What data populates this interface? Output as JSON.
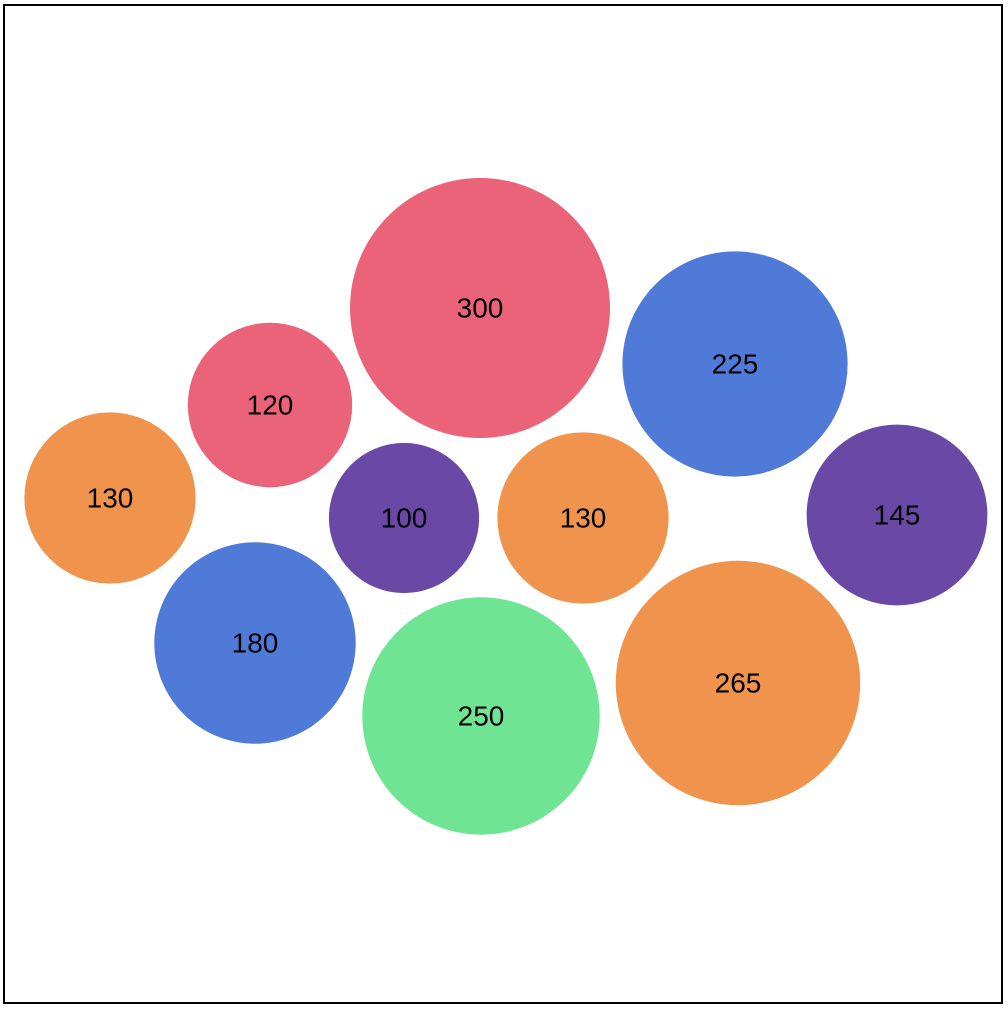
{
  "chart_data": {
    "type": "bubble",
    "title": "",
    "values": [
      130,
      120,
      300,
      225,
      100,
      130,
      145,
      180,
      250,
      265
    ],
    "colors": [
      "#f0944d",
      "#eb6379",
      "#eb6379",
      "#507ad8",
      "#6948a6",
      "#f0944d",
      "#6948a6",
      "#507ad8",
      "#6fe594",
      "#f0944d"
    ],
    "grid": false,
    "legend": "none"
  }
}
